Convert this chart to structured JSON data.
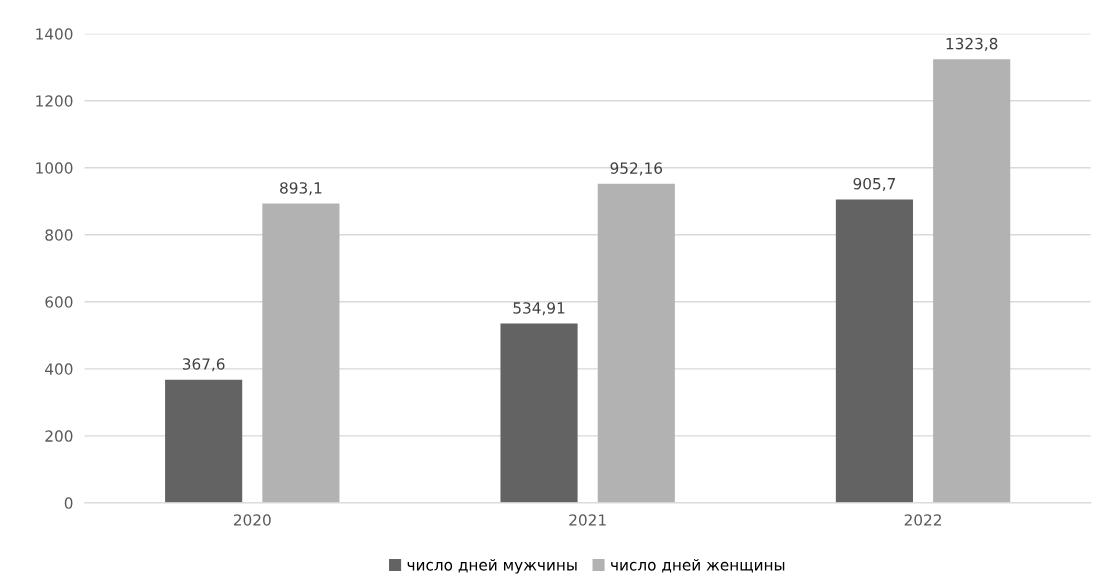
{
  "chart_data": {
    "type": "bar",
    "categories": [
      "2020",
      "2021",
      "2022"
    ],
    "series": [
      {
        "name": "число дней мужчины",
        "color": "#636363",
        "values": [
          367.6,
          534.91,
          905.7
        ],
        "value_labels": [
          "367,6",
          "534,91",
          "905,7"
        ]
      },
      {
        "name": "число дней женщины",
        "color": "#b2b2b2",
        "values": [
          893.1,
          952.16,
          1323.8
        ],
        "value_labels": [
          "893,1",
          "952,16",
          "1323,8"
        ]
      }
    ],
    "ylim": [
      0,
      1400
    ],
    "yticks": [
      0,
      200,
      400,
      600,
      800,
      1000,
      1200,
      1400
    ],
    "grid": "y",
    "legend": "bottom"
  }
}
